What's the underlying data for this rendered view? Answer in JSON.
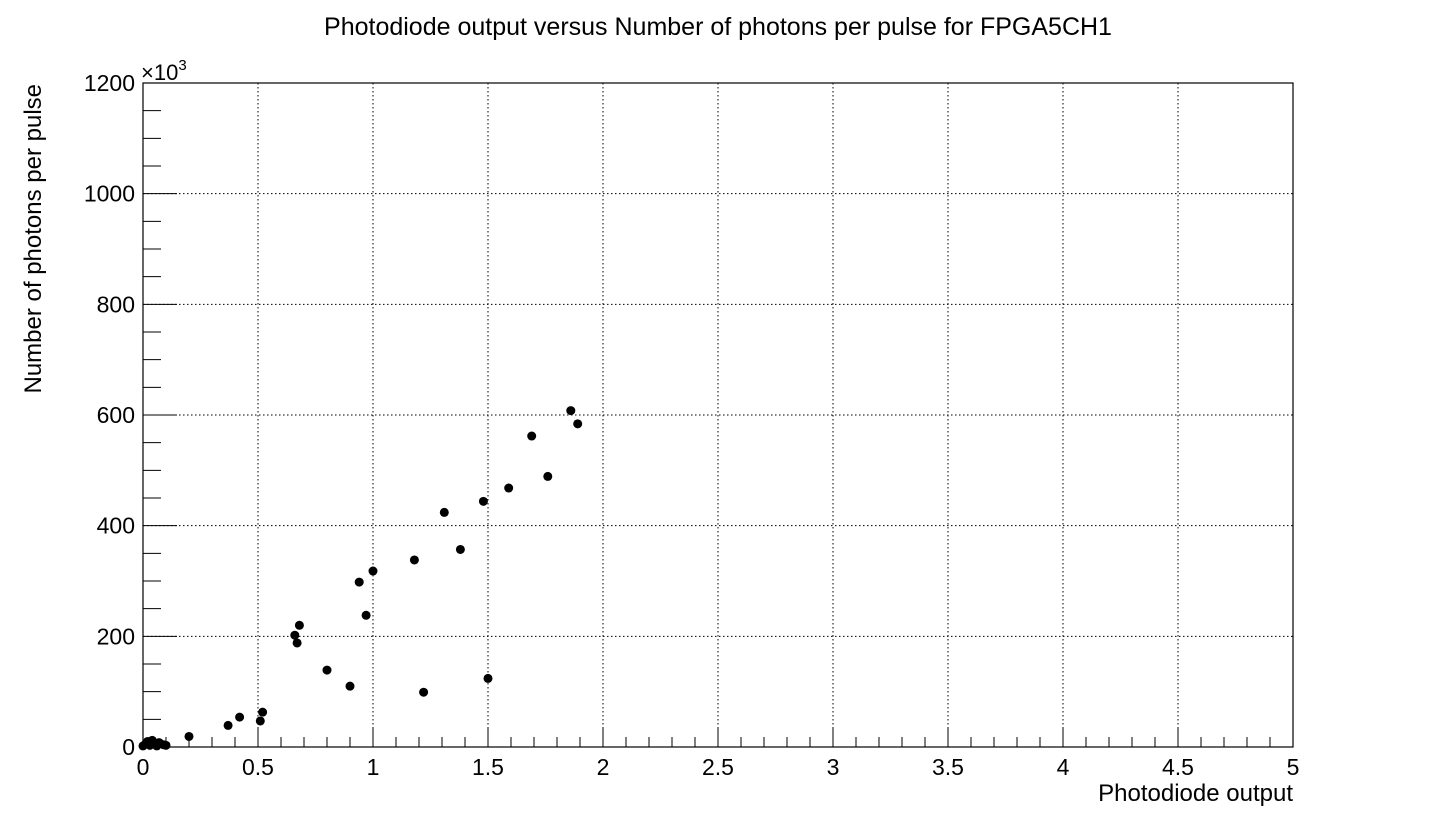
{
  "chart_data": {
    "type": "scatter",
    "title": "Photodiode output versus Number of photons per pulse for FPGA5CH1",
    "xlabel": "Photodiode output",
    "ylabel": "Number of photons per pulse",
    "y_multiplier_base": "×10",
    "y_multiplier_exp": "3",
    "xlim": [
      0,
      5
    ],
    "ylim": [
      0,
      1200
    ],
    "x_ticks": [
      0,
      0.5,
      1,
      1.5,
      2,
      2.5,
      3,
      3.5,
      4,
      4.5,
      5
    ],
    "x_tick_labels": [
      "0",
      "0.5",
      "1",
      "1.5",
      "2",
      "2.5",
      "3",
      "3.5",
      "4",
      "4.5",
      "5"
    ],
    "y_ticks": [
      0,
      200,
      400,
      600,
      800,
      1000,
      1200
    ],
    "y_tick_labels": [
      "0",
      "200",
      "400",
      "600",
      "800",
      "1000",
      "1200"
    ],
    "grid": true,
    "marker_color": "#000000",
    "points": [
      {
        "x": 0.0,
        "y": 2
      },
      {
        "x": 0.01,
        "y": 5
      },
      {
        "x": 0.02,
        "y": 10
      },
      {
        "x": 0.03,
        "y": 3
      },
      {
        "x": 0.04,
        "y": 12
      },
      {
        "x": 0.05,
        "y": 6
      },
      {
        "x": 0.06,
        "y": 2
      },
      {
        "x": 0.07,
        "y": 8
      },
      {
        "x": 0.09,
        "y": 4
      },
      {
        "x": 0.1,
        "y": 3
      },
      {
        "x": 0.2,
        "y": 19
      },
      {
        "x": 0.37,
        "y": 39
      },
      {
        "x": 0.42,
        "y": 54
      },
      {
        "x": 0.51,
        "y": 47
      },
      {
        "x": 0.52,
        "y": 63
      },
      {
        "x": 0.66,
        "y": 202
      },
      {
        "x": 0.67,
        "y": 188
      },
      {
        "x": 0.68,
        "y": 220
      },
      {
        "x": 0.8,
        "y": 139
      },
      {
        "x": 0.9,
        "y": 110
      },
      {
        "x": 0.94,
        "y": 298
      },
      {
        "x": 0.97,
        "y": 238
      },
      {
        "x": 1.0,
        "y": 318
      },
      {
        "x": 1.18,
        "y": 338
      },
      {
        "x": 1.22,
        "y": 99
      },
      {
        "x": 1.31,
        "y": 424
      },
      {
        "x": 1.38,
        "y": 357
      },
      {
        "x": 1.48,
        "y": 444
      },
      {
        "x": 1.5,
        "y": 124
      },
      {
        "x": 1.59,
        "y": 468
      },
      {
        "x": 1.69,
        "y": 562
      },
      {
        "x": 1.76,
        "y": 489
      },
      {
        "x": 1.86,
        "y": 608
      },
      {
        "x": 1.89,
        "y": 584
      }
    ]
  }
}
